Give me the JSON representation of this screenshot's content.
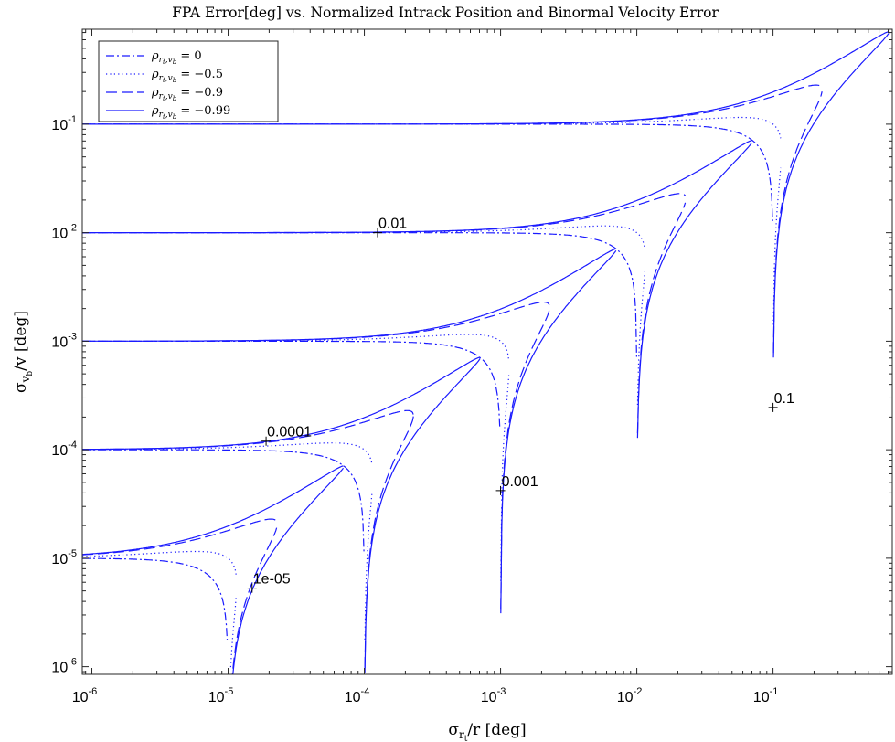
{
  "chart_data": {
    "type": "line",
    "title": "FPA Error[deg] vs. Normalized Intrack Position and Binormal Velocity Error",
    "xlabel": "σ_{r_t}/r [deg]",
    "ylabel": "σ_{v_b}/v [deg]",
    "xscale": "log",
    "yscale": "log",
    "xlim": [
      8.5e-07,
      0.75
    ],
    "ylim": [
      8.5e-07,
      0.75
    ],
    "x_ticks": [
      {
        "value": 1e-06,
        "base": "10",
        "exp": "-6"
      },
      {
        "value": 1e-05,
        "base": "10",
        "exp": "-5"
      },
      {
        "value": 0.0001,
        "base": "10",
        "exp": "-4"
      },
      {
        "value": 0.001,
        "base": "10",
        "exp": "-3"
      },
      {
        "value": 0.01,
        "base": "10",
        "exp": "-2"
      },
      {
        "value": 0.1,
        "base": "10",
        "exp": "-1"
      }
    ],
    "y_ticks": [
      {
        "value": 1e-06,
        "base": "10",
        "exp": "-6"
      },
      {
        "value": 1e-05,
        "base": "10",
        "exp": "-5"
      },
      {
        "value": 0.0001,
        "base": "10",
        "exp": "-4"
      },
      {
        "value": 0.001,
        "base": "10",
        "exp": "-3"
      },
      {
        "value": 0.01,
        "base": "10",
        "exp": "-2"
      },
      {
        "value": 0.1,
        "base": "10",
        "exp": "-1"
      }
    ],
    "grid": false,
    "legend_position": "top-left",
    "contour_levels": [
      1e-05,
      0.0001,
      0.001,
      0.01,
      0.1
    ],
    "contour_labels": [
      {
        "text": "1e-05",
        "x": 1.5e-05,
        "y": 5.3e-06
      },
      {
        "text": "0.0001",
        "x": 1.9e-05,
        "y": 0.00012
      },
      {
        "text": "0.001",
        "x": 0.001,
        "y": 4.2e-05
      },
      {
        "text": "0.01",
        "x": 0.000125,
        "y": 0.01
      },
      {
        "text": "0.1",
        "x": 0.1,
        "y": 0.000245
      }
    ],
    "series": [
      {
        "name": "ρ_{r_t,v_b} = 0",
        "rho": 0,
        "line_style": "dashdot",
        "color": "#1a1aff"
      },
      {
        "name": "ρ_{r_t,v_b} = −0.5",
        "rho": -0.5,
        "line_style": "dotted",
        "color": "#1a1aff"
      },
      {
        "name": "ρ_{r_t,v_b} = −0.9",
        "rho": -0.9,
        "line_style": "dashed",
        "color": "#1a1aff"
      },
      {
        "name": "ρ_{r_t,v_b} = −0.99",
        "rho": -0.99,
        "line_style": "solid",
        "color": "#1a1aff"
      }
    ],
    "legend": {
      "entries": [
        {
          "prefix": "ρ",
          "sub": "r",
          "subsub": "t",
          "sub2": "v",
          "sub2sub": "b",
          "rhs": "= 0"
        },
        {
          "prefix": "ρ",
          "sub": "r",
          "subsub": "t",
          "sub2": "v",
          "sub2sub": "b",
          "rhs": "= −0.5"
        },
        {
          "prefix": "ρ",
          "sub": "r",
          "subsub": "t",
          "sub2": "v",
          "sub2sub": "b",
          "rhs": "= −0.9"
        },
        {
          "prefix": "ρ",
          "sub": "r",
          "subsub": "t",
          "sub2": "v",
          "sub2sub": "b",
          "rhs": "= −0.99"
        }
      ]
    },
    "axis_label_parts": {
      "x": {
        "sigma": "σ",
        "sub": "r",
        "subsub": "t",
        "rest": "/r [deg]"
      },
      "y": {
        "sigma": "σ",
        "sub": "v",
        "subsub": "b",
        "rest": "/v [deg]"
      }
    }
  }
}
